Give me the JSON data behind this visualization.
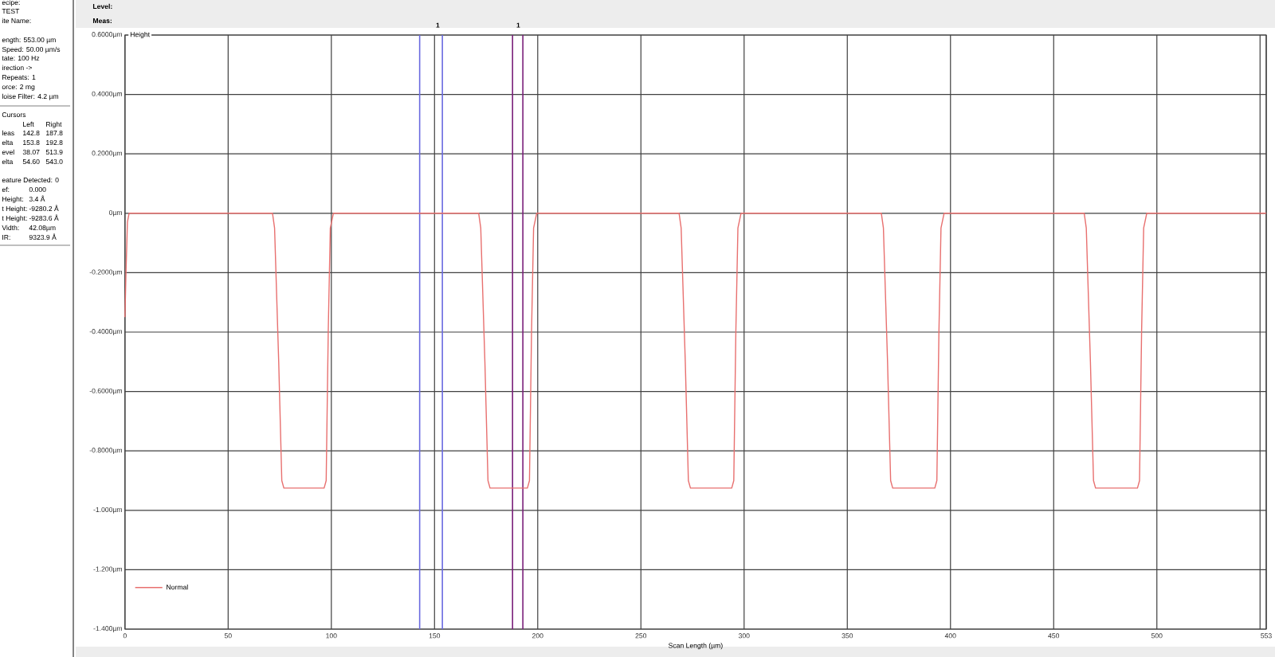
{
  "chart_data": {
    "type": "line",
    "xlabel": "Scan Length (µm)",
    "ylabel": "Height",
    "x": [
      0,
      0.5,
      1.2,
      2,
      30,
      71.5,
      72.5,
      74.5,
      76,
      77,
      96.5,
      97.5,
      98.5,
      99.5,
      101,
      171.4,
      172.4,
      174.4,
      175.9,
      176.9,
      195,
      196,
      197,
      198,
      199.5,
      268.5,
      269.5,
      271.5,
      273,
      274,
      294,
      295,
      296,
      297,
      298.5,
      366.5,
      367.5,
      369.5,
      371,
      372,
      392.4,
      393.4,
      394.4,
      395.4,
      396.9,
      464.8,
      465.8,
      467.8,
      469.3,
      470.3,
      490.6,
      491.6,
      492.6,
      493.6,
      495.1,
      553
    ],
    "series": [
      {
        "name": "Normal",
        "color": "#e8706f",
        "values": [
          -0.35,
          -0.2,
          -0.03,
          0,
          0,
          0,
          -0.05,
          -0.5,
          -0.9,
          -0.925,
          -0.925,
          -0.9,
          -0.4,
          -0.05,
          0,
          0,
          -0.05,
          -0.5,
          -0.9,
          -0.925,
          -0.925,
          -0.9,
          -0.4,
          -0.05,
          0,
          0,
          -0.05,
          -0.5,
          -0.9,
          -0.925,
          -0.925,
          -0.9,
          -0.4,
          -0.05,
          0,
          0,
          -0.05,
          -0.5,
          -0.9,
          -0.925,
          -0.925,
          -0.9,
          -0.4,
          -0.05,
          0,
          0,
          -0.05,
          -0.5,
          -0.9,
          -0.925,
          -0.925,
          -0.9,
          -0.4,
          -0.05,
          0,
          0
        ]
      }
    ],
    "xlim": [
      0,
      553
    ],
    "ylim": [
      -1.4,
      0.6
    ],
    "xticks": [
      0,
      50,
      100,
      150,
      200,
      250,
      300,
      350,
      400,
      450,
      500,
      {
        "value": 550,
        "label": null
      },
      {
        "value": 553,
        "label": "553"
      }
    ],
    "yticks": [
      {
        "value": 0.6,
        "label": "0.6000µm"
      },
      {
        "value": 0.4,
        "label": "0.4000µm"
      },
      {
        "value": 0.2,
        "label": "0.2000µm"
      },
      {
        "value": 0,
        "label": "0µm"
      },
      {
        "value": -0.2,
        "label": "-0.2000µm"
      },
      {
        "value": -0.4,
        "label": "-0.4000µm"
      },
      {
        "value": -0.6,
        "label": "-0.6000µm"
      },
      {
        "value": -0.8,
        "label": "-0.8000µm"
      },
      {
        "value": -1.0,
        "label": "-1.000µm"
      },
      {
        "value": -1.2,
        "label": "-1.200µm"
      },
      {
        "value": -1.4,
        "label": "-1.400µm"
      }
    ],
    "grid": true,
    "legend": "bottom left",
    "ref_lines": [
      {
        "axis": "x",
        "value": 142.8,
        "color": "#6a6ae0"
      },
      {
        "axis": "x",
        "value": 153.8,
        "color": "#6a6ae0"
      },
      {
        "axis": "x",
        "value": 187.8,
        "color": "#7a1f7a"
      },
      {
        "axis": "x",
        "value": 192.8,
        "color": "#7a1f7a"
      }
    ],
    "annotations": [
      "ecipe:",
      "TEST",
      "ite Name:",
      "ength: 553.00 µm",
      "Speed: 50.00 µm/s",
      "tate: 100 Hz",
      "irection ->",
      "Repeats: 1",
      "orce: 2 mg",
      "loise Filter: 4.2 µm",
      "Cursors",
      "Left",
      "Right",
      "leas",
      "142.8",
      "187.8",
      "elta",
      "153.8",
      "192.8",
      "evel",
      "38.07",
      "513.9",
      "elta",
      "54.60",
      "543.0",
      "eature Detected: 0",
      "ef:",
      "0.000",
      "Height:",
      "3.4 Å",
      "t Height:",
      "-9280.2 Å",
      "t Height:",
      "-9283.6 Å",
      "Vidth:",
      "42.08µm",
      "IR:",
      "9323.9 Å",
      "Level:",
      "Meas:",
      {
        "text": "1",
        "x": 153.8,
        "y": 0.6
      },
      {
        "text": "1",
        "x": 192.8,
        "y": 0.6
      }
    ]
  }
}
